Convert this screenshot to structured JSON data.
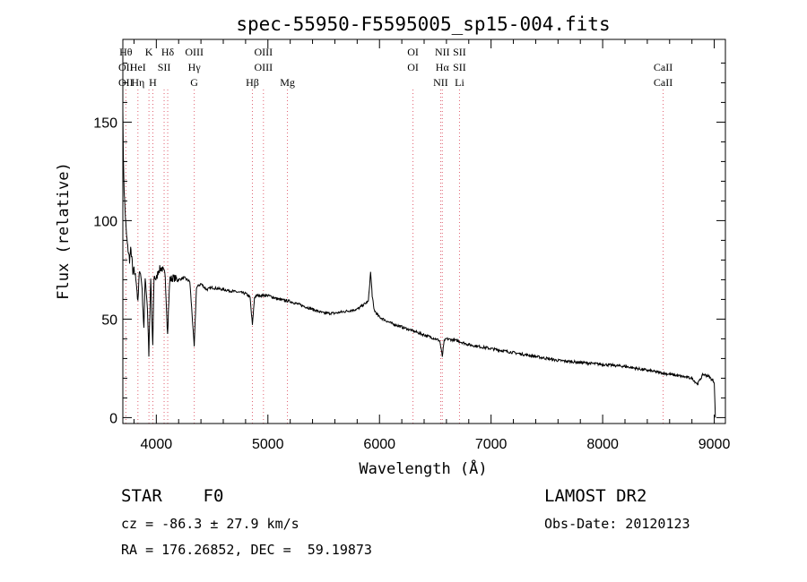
{
  "chart_data": {
    "type": "line",
    "title": "spec-55950-F5595005_sp15-004.fits",
    "xlabel": "Wavelength (Å)",
    "ylabel": "Flux (relative)",
    "xlim": [
      3700,
      9100
    ],
    "ylim": [
      -3,
      192
    ],
    "x_ticks": [
      4000,
      5000,
      6000,
      7000,
      8000,
      9000
    ],
    "y_ticks": [
      0,
      50,
      100,
      150
    ],
    "grid": false,
    "series": [
      {
        "x": [
          3700,
          3705,
          3712,
          3720,
          3730,
          3740,
          3750,
          3760,
          3770,
          3780,
          3790,
          3800,
          3820,
          3835,
          3850,
          3870,
          3889,
          3900,
          3920,
          3933,
          3950,
          3968,
          3980,
          4000,
          4020,
          4050,
          4080,
          4101,
          4120,
          4150,
          4200,
          4250,
          4300,
          4340,
          4360,
          4400,
          4450,
          4500,
          4600,
          4700,
          4800,
          4840,
          4861,
          4880,
          4900,
          5000,
          5100,
          5200,
          5300,
          5400,
          5500,
          5600,
          5700,
          5800,
          5850,
          5900,
          5920,
          5935,
          5950,
          5970,
          6000,
          6100,
          6200,
          6300,
          6400,
          6500,
          6540,
          6563,
          6580,
          6600,
          6700,
          6800,
          7000,
          7200,
          7400,
          7600,
          7800,
          8000,
          8200,
          8400,
          8500,
          8600,
          8700,
          8800,
          8850,
          8900,
          8950,
          9000,
          9010
        ],
        "y": [
          158,
          130,
          115,
          105,
          95,
          88,
          84,
          80,
          85,
          82,
          72,
          75,
          70,
          58,
          76,
          68,
          45,
          72,
          56,
          32,
          70,
          35,
          72,
          70,
          75,
          76,
          72,
          42,
          70,
          71,
          70,
          71,
          69,
          36,
          66,
          68,
          65,
          66,
          65,
          64,
          63,
          61,
          47,
          61,
          62,
          62,
          60,
          59,
          57,
          55,
          53,
          53,
          54,
          55,
          57,
          59,
          74,
          62,
          55,
          53,
          51,
          48,
          46,
          44,
          42,
          40,
          39,
          31,
          39,
          40,
          39,
          37,
          35,
          33,
          31,
          29,
          28,
          27,
          26,
          24,
          23,
          22,
          21,
          20,
          17,
          22,
          21,
          18,
          0
        ]
      }
    ],
    "line_markers": [
      {
        "rows": [
          "Hθ",
          "OII",
          "OII"
        ],
        "x": 3727
      },
      {
        "rows": [
          "",
          "HeI",
          "Hη"
        ],
        "x": 3835
      },
      {
        "rows": [
          "K",
          "",
          ""
        ],
        "x": 3934
      },
      {
        "rows": [
          "",
          "",
          "H"
        ],
        "x": 3969
      },
      {
        "rows": [
          "",
          "SII",
          ""
        ],
        "x": 4070
      },
      {
        "rows": [
          "Hδ",
          "",
          ""
        ],
        "x": 4102
      },
      {
        "rows": [
          "OIII",
          "Hγ",
          "G"
        ],
        "x": 4340
      },
      {
        "rows": [
          "",
          "",
          "Hβ"
        ],
        "x": 4861
      },
      {
        "rows": [
          "OIII",
          "OIII",
          ""
        ],
        "x": 4960
      },
      {
        "rows": [
          "",
          "",
          "Mg"
        ],
        "x": 5175
      },
      {
        "rows": [
          "OI",
          "OI",
          ""
        ],
        "x": 6300
      },
      {
        "rows": [
          "",
          "",
          "NII"
        ],
        "x": 6548
      },
      {
        "rows": [
          "NII",
          "Hα",
          ""
        ],
        "x": 6563
      },
      {
        "rows": [
          "SII",
          "SII",
          "Li"
        ],
        "x": 6717
      },
      {
        "rows": [
          "",
          "CaII",
          "CaII"
        ],
        "x": 8542
      }
    ]
  },
  "info": {
    "classification": "STAR    F0",
    "survey": "LAMOST DR2",
    "cz": "cz = -86.3 ± 27.9 km/s",
    "obs_date": "Obs-Date: 20120123",
    "coords": "RA = 176.26852, DEC =  59.19873"
  },
  "colors": {
    "spectrum": "#000000",
    "marker_lines": "#e06070",
    "axis": "#000000"
  }
}
